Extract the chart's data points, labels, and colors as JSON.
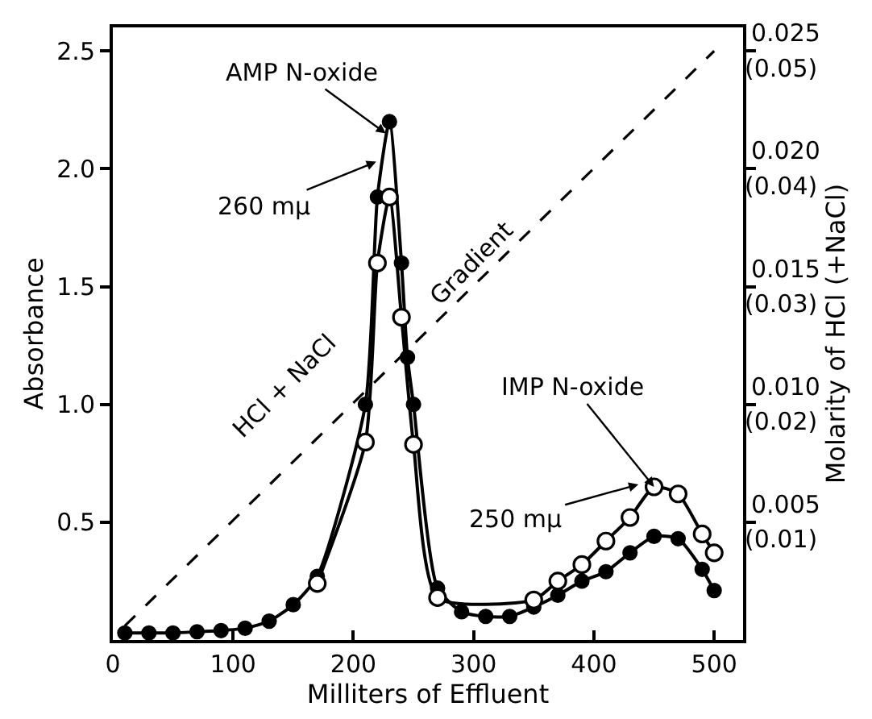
{
  "chart_data": {
    "type": "line",
    "xlabel": "Milliters of Effluent",
    "ylabel": "Absorbance",
    "y2label": "Molarity of HCl (+NaCl)",
    "xlim": [
      0,
      524
    ],
    "xticks": [
      0,
      100,
      200,
      300,
      400,
      500
    ],
    "ylim": [
      0,
      2.6
    ],
    "yticks": [
      0.5,
      {
        "value": 1,
        "label": "1.0"
      },
      1.5,
      {
        "value": 2,
        "label": "2.0"
      },
      2.5
    ],
    "y2lim": [
      0,
      0.026
    ],
    "y2ticks": [
      0.005,
      {
        "value": 0.01,
        "label": "0.010"
      },
      0.015,
      {
        "value": 0.02,
        "label": "0.020"
      },
      0.025
    ],
    "y3lim": [
      0,
      0.052
    ],
    "y3ticks": [
      {
        "value": 0.01,
        "label": "(0.01)"
      },
      {
        "value": 0.02,
        "label": "(0.02)"
      },
      {
        "value": 0.03,
        "label": "(0.03)"
      },
      {
        "value": 0.04,
        "label": "(0.04)"
      },
      {
        "value": 0.05,
        "label": "(0.05)"
      }
    ],
    "series": [
      {
        "color": "#000000",
        "marker": "circle",
        "x": [
          10,
          30,
          50,
          70,
          90,
          110,
          130,
          150,
          170,
          210,
          220,
          230,
          240,
          245,
          250,
          270,
          290,
          310,
          330,
          350,
          370,
          390,
          410,
          430,
          450,
          470,
          490,
          500
        ],
        "values": [
          0.03,
          0.03,
          0.03,
          0.035,
          0.04,
          0.05,
          0.08,
          0.15,
          0.27,
          1.0,
          1.88,
          2.2,
          1.6,
          1.2,
          1.0,
          0.22,
          0.12,
          0.1,
          0.1,
          0.14,
          0.19,
          0.25,
          0.29,
          0.37,
          0.44,
          0.43,
          0.3,
          0.21
        ]
      },
      {
        "color": "#000000",
        "marker": "circle-open",
        "x": [
          170,
          210,
          220,
          230,
          240,
          250,
          270,
          350,
          370,
          390,
          410,
          430,
          450,
          470,
          490,
          500
        ],
        "values": [
          0.24,
          0.84,
          1.6,
          1.88,
          1.37,
          0.83,
          0.18,
          0.17,
          0.25,
          0.32,
          0.42,
          0.52,
          0.65,
          0.62,
          0.45,
          0.37
        ]
      },
      {
        "color": "#000000",
        "marker": "none",
        "line_style": "dashed",
        "axis": "y2",
        "x": [
          10,
          500
        ],
        "values": [
          0.0006,
          0.025
        ]
      }
    ],
    "annotations": [
      {
        "text": "AMP N-oxide",
        "x": 227,
        "y": 2.15
      },
      {
        "text": "260 mμ",
        "x": 219,
        "y": 2.03
      },
      {
        "text": "IMP N-oxide",
        "x": 450,
        "y": 0.65
      },
      {
        "text": "250 mμ",
        "x": 437,
        "y": 0.66
      },
      "HCl + NaCl",
      "Gradient"
    ]
  }
}
